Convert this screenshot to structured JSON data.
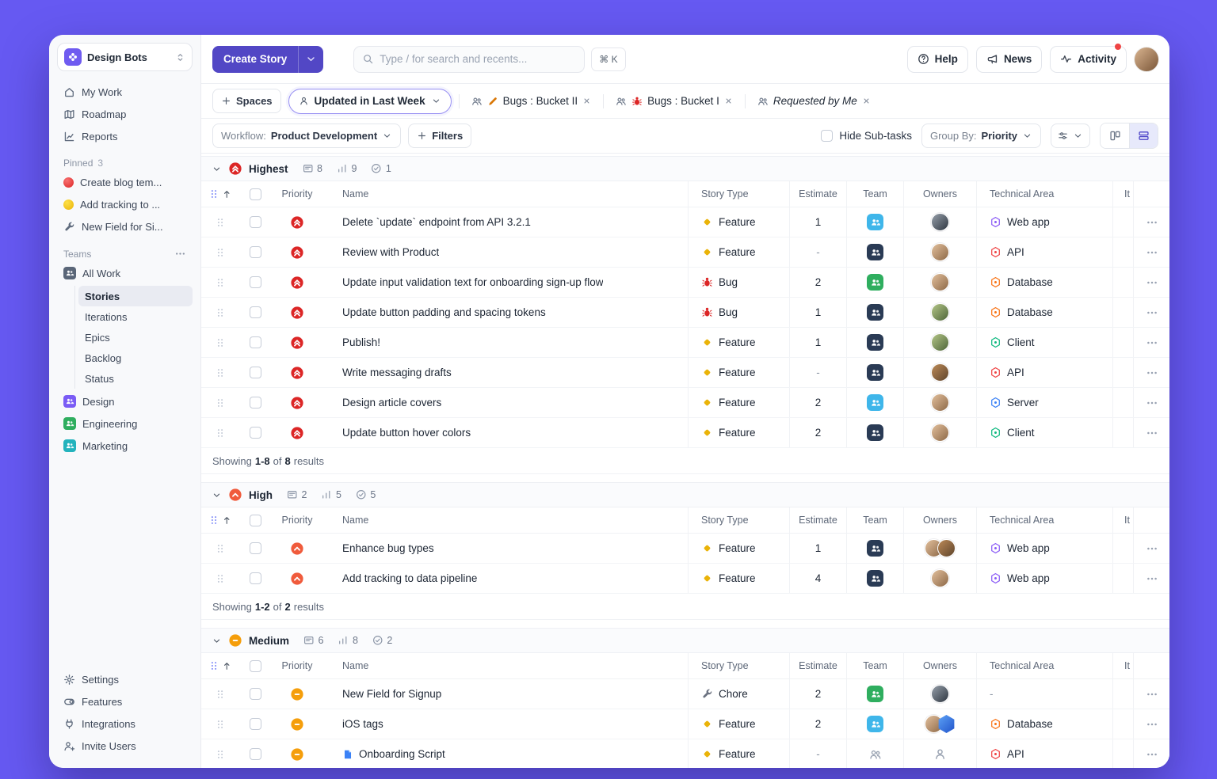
{
  "sidebar": {
    "workspace_name": "Design Bots",
    "nav": [
      {
        "label": "My Work"
      },
      {
        "label": "Roadmap"
      },
      {
        "label": "Reports"
      }
    ],
    "pinned_label": "Pinned",
    "pinned_count": "3",
    "pinned_items": [
      {
        "label": "Create blog tem..."
      },
      {
        "label": "Add tracking to ..."
      },
      {
        "label": "New Field for Si..."
      }
    ],
    "teams_label": "Teams",
    "all_work_label": "All Work",
    "all_work_items": [
      {
        "label": "Stories"
      },
      {
        "label": "Iterations"
      },
      {
        "label": "Epics"
      },
      {
        "label": "Backlog"
      },
      {
        "label": "Status"
      }
    ],
    "teams": [
      {
        "label": "Design"
      },
      {
        "label": "Engineering"
      },
      {
        "label": "Marketing"
      }
    ],
    "footer": [
      {
        "label": "Settings"
      },
      {
        "label": "Features"
      },
      {
        "label": "Integrations"
      },
      {
        "label": "Invite Users"
      }
    ]
  },
  "topbar": {
    "create_story": "Create Story",
    "search_placeholder": "Type / for search and recents...",
    "search_shortcut": "⌘ K",
    "help": "Help",
    "news": "News",
    "activity": "Activity"
  },
  "filterbar": {
    "spaces": "Spaces",
    "primary_filter": "Updated in Last Week",
    "chips": [
      {
        "label": "Bugs : Bucket II"
      },
      {
        "label": "Bugs : Bucket I"
      },
      {
        "label": "Requested by Me"
      }
    ]
  },
  "toolbar": {
    "workflow_label": "Workflow:",
    "workflow_value": "Product Development",
    "filters": "Filters",
    "hide_subtasks": "Hide Sub-tasks",
    "group_by_label": "Group By:",
    "group_by_value": "Priority"
  },
  "palette": {
    "accent": "#5247c5",
    "priority": {
      "highest": "#dc2626",
      "high": "#f05b3c",
      "medium": "#f59e0b"
    },
    "story_types": {
      "Feature": "#eab308",
      "Bug": "#dc2626",
      "Chore": "#6b7280"
    },
    "areas": {
      "Web app": "#8b5cf6",
      "API": "#ef4444",
      "Database": "#f97316",
      "Client": "#10b981",
      "Server": "#3b82f6"
    },
    "teams": {
      "sky": "#3fb6ea",
      "navy": "#2a3b55",
      "green": "#2fae5f"
    }
  },
  "table": {
    "columns": [
      "Priority",
      "Name",
      "Story Type",
      "Estimate",
      "Team",
      "Owners",
      "Technical Area",
      "It"
    ],
    "groups": [
      {
        "name": "Highest",
        "priority": "highest",
        "counts": [
          {
            "icon": "card",
            "value": "8"
          },
          {
            "icon": "bars",
            "value": "9"
          },
          {
            "icon": "check",
            "value": "1"
          }
        ],
        "rows": [
          {
            "name": "Delete `update` endpoint from API 3.2.1",
            "type": "Feature",
            "estimate": "1",
            "team": "sky",
            "owners": [
              "dark"
            ],
            "area": "Web app"
          },
          {
            "name": "Review with Product",
            "type": "Feature",
            "estimate": "-",
            "team": "navy",
            "owners": [
              "tan"
            ],
            "area": "API"
          },
          {
            "name": "Update input validation text for onboarding sign-up flow",
            "type": "Bug",
            "estimate": "2",
            "team": "green",
            "owners": [
              "tan"
            ],
            "area": "Database"
          },
          {
            "name": "Update button padding and spacing tokens",
            "type": "Bug",
            "estimate": "1",
            "team": "navy",
            "owners": [
              "green"
            ],
            "area": "Database"
          },
          {
            "name": "Publish!",
            "type": "Feature",
            "estimate": "1",
            "team": "navy",
            "owners": [
              "green"
            ],
            "area": "Client"
          },
          {
            "name": "Write messaging drafts",
            "type": "Feature",
            "estimate": "-",
            "team": "navy",
            "owners": [
              "brown"
            ],
            "area": "API"
          },
          {
            "name": "Design article covers",
            "type": "Feature",
            "estimate": "2",
            "team": "sky",
            "owners": [
              "tan"
            ],
            "area": "Server"
          },
          {
            "name": "Update button hover colors",
            "type": "Feature",
            "estimate": "2",
            "team": "navy",
            "owners": [
              "tan"
            ],
            "area": "Client"
          }
        ],
        "footer": {
          "showing": "Showing",
          "range": "1-8",
          "of": "of",
          "total": "8",
          "results": "results"
        }
      },
      {
        "name": "High",
        "priority": "high",
        "counts": [
          {
            "icon": "card",
            "value": "2"
          },
          {
            "icon": "bars",
            "value": "5"
          },
          {
            "icon": "check",
            "value": "5"
          }
        ],
        "rows": [
          {
            "name": "Enhance bug types",
            "type": "Feature",
            "estimate": "1",
            "team": "navy",
            "owners": [
              "tan",
              "brown"
            ],
            "area": "Web app"
          },
          {
            "name": "Add tracking to data pipeline",
            "type": "Feature",
            "estimate": "4",
            "team": "navy",
            "owners": [
              "tan"
            ],
            "area": "Web app"
          }
        ],
        "footer": {
          "showing": "Showing",
          "range": "1-2",
          "of": "of",
          "total": "2",
          "results": "results"
        }
      },
      {
        "name": "Medium",
        "priority": "medium",
        "counts": [
          {
            "icon": "card",
            "value": "6"
          },
          {
            "icon": "bars",
            "value": "8"
          },
          {
            "icon": "check",
            "value": "2"
          }
        ],
        "rows": [
          {
            "name": "New Field for Signup",
            "type": "Chore",
            "estimate": "2",
            "team": "green",
            "owners": [
              "dark"
            ],
            "area": "-"
          },
          {
            "name": "iOS tags",
            "type": "Feature",
            "estimate": "2",
            "team": "sky",
            "owners": [
              "tan",
              "hexblue"
            ],
            "area": "Database"
          },
          {
            "name": "Onboarding Script",
            "name_icon": "doc",
            "type": "Feature",
            "estimate": "-",
            "team": "none",
            "owners": [
              "unassigned"
            ],
            "area": "API"
          }
        ]
      }
    ]
  }
}
